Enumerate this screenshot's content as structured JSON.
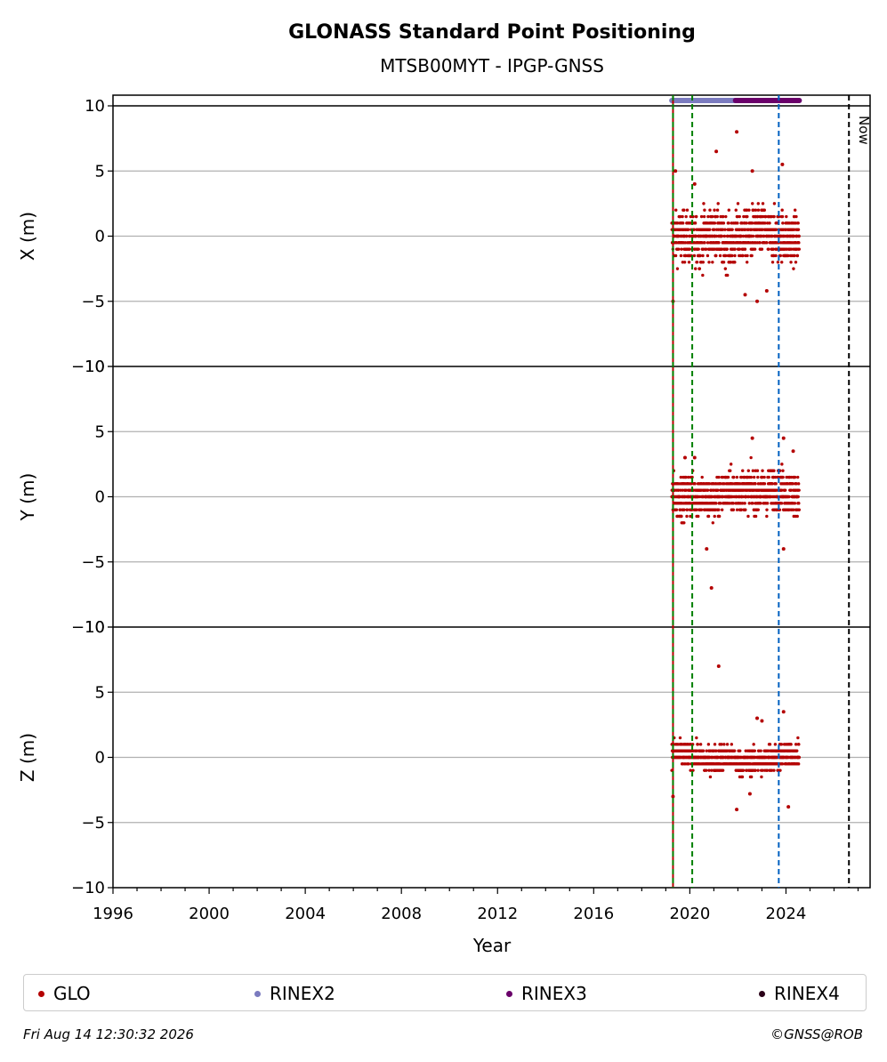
{
  "chart_data": {
    "type": "scatter",
    "title": "GLONASS Standard Point Positioning",
    "subtitle": "MTSB00MYT - IPGP-GNSS",
    "xlabel": "Year",
    "xlim": [
      1996,
      2027.5
    ],
    "x_ticks": [
      "1996",
      "2000",
      "2004",
      "2008",
      "2012",
      "2016",
      "2020",
      "2024"
    ],
    "panels": [
      {
        "ylabel": "X (m)",
        "ylim": [
          -10,
          10
        ],
        "y_ticks": [
          "10",
          "5",
          "0",
          "−5",
          "−10"
        ],
        "series": [
          {
            "name": "GLO",
            "color": "#b40000",
            "x_range": [
              2019.25,
              2024.55
            ],
            "center_values": [
              0,
              -0.3,
              0.2,
              -0.5,
              0.1,
              0.4,
              0,
              -0.2
            ],
            "typical_spread": [
              -3,
              3
            ],
            "outliers": [
              [
                2019.4,
                5.0
              ],
              [
                2019.3,
                -5.0
              ],
              [
                2020.2,
                4.0
              ],
              [
                2021.1,
                6.5
              ],
              [
                2021.95,
                8.0
              ],
              [
                2022.6,
                5.0
              ],
              [
                2023.85,
                5.5
              ],
              [
                2022.3,
                -4.5
              ],
              [
                2023.2,
                -4.2
              ],
              [
                2022.8,
                -5.0
              ]
            ]
          }
        ]
      },
      {
        "ylabel": "Y (m)",
        "ylim": [
          -10,
          10
        ],
        "y_ticks": [
          "10",
          "5",
          "0",
          "−5",
          "−10"
        ],
        "series": [
          {
            "name": "GLO",
            "color": "#b40000",
            "x_range": [
              2019.25,
              2024.55
            ],
            "center_values": [
              0,
              0.2,
              -0.2,
              0.4,
              0.5,
              0.3,
              0.6,
              0.2
            ],
            "typical_spread": [
              -2.5,
              2.5
            ],
            "outliers": [
              [
                2020.9,
                -7.0
              ],
              [
                2020.7,
                -4.0
              ],
              [
                2022.6,
                4.5
              ],
              [
                2023.9,
                4.5
              ],
              [
                2024.3,
                3.5
              ],
              [
                2023.9,
                -4.0
              ],
              [
                2019.8,
                3.0
              ],
              [
                2020.2,
                3.0
              ]
            ]
          }
        ]
      },
      {
        "ylabel": "Z (m)",
        "ylim": [
          -10,
          10
        ],
        "y_ticks": [
          "10",
          "5",
          "0",
          "−5",
          "−10"
        ],
        "series": [
          {
            "name": "GLO",
            "color": "#b40000",
            "x_range": [
              2019.25,
              2024.55
            ],
            "center_values": [
              0.3,
              0.1,
              -0.2,
              0,
              -0.4,
              -0.3,
              0,
              0.2
            ],
            "typical_spread": [
              -1.5,
              1.5
            ],
            "outliers": [
              [
                2021.2,
                7.0
              ],
              [
                2021.95,
                -4.0
              ],
              [
                2023.9,
                3.5
              ],
              [
                2024.1,
                -3.8
              ],
              [
                2019.3,
                -3.0
              ],
              [
                2022.8,
                3.0
              ],
              [
                2023.0,
                2.8
              ],
              [
                2022.5,
                -2.8
              ]
            ]
          }
        ]
      }
    ],
    "availability_bars": [
      {
        "name": "RINEX2",
        "color": "#7b7bbf",
        "x_range": [
          2019.25,
          2024.55
        ]
      },
      {
        "name": "RINEX3",
        "color": "#6a006a",
        "x_range": [
          2021.9,
          2024.55
        ]
      }
    ],
    "vertical_lines": [
      {
        "x": 2019.3,
        "color": "#b40000",
        "style": "solid"
      },
      {
        "x": 2019.3,
        "color": "#008000",
        "style": "dashed"
      },
      {
        "x": 2020.1,
        "color": "#008000",
        "style": "dashed"
      },
      {
        "x": 2023.7,
        "color": "#0060c0",
        "style": "dashed"
      },
      {
        "x": 2026.62,
        "color": "#000000",
        "style": "dashed",
        "label": "Now"
      }
    ],
    "legend": {
      "placement": "bottom",
      "entries": [
        {
          "label": "GLO",
          "color": "#b40000"
        },
        {
          "label": "RINEX2",
          "color": "#7b7bbf"
        },
        {
          "label": "RINEX3",
          "color": "#6a006a"
        },
        {
          "label": "RINEX4",
          "color": "#2a0018"
        }
      ]
    },
    "grid": true
  },
  "footer": {
    "timestamp": "Fri Aug 14 12:30:32 2026",
    "credit": "©GNSS@ROB"
  }
}
